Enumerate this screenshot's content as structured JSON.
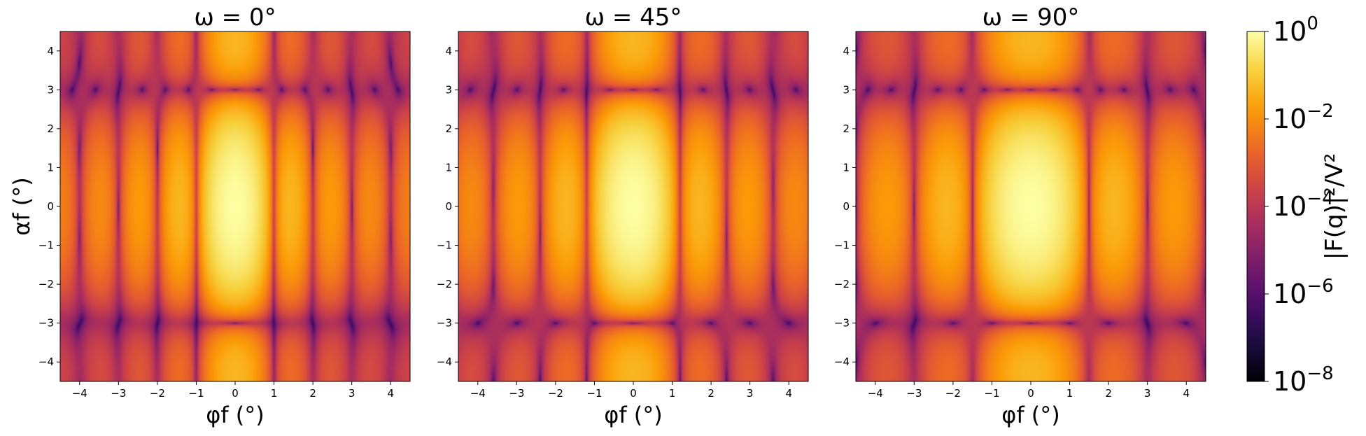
{
  "chart_data": [
    {
      "type": "heatmap",
      "title": "ω = 0°",
      "xlabel": "φf (°)",
      "ylabel": "αf (°)",
      "xlim": [
        -4.5,
        4.5
      ],
      "ylim": [
        -4.5,
        4.5
      ],
      "xticks": [
        "−4",
        "−3",
        "−2",
        "−1",
        "0",
        "1",
        "2",
        "3",
        "4"
      ],
      "yticks": [
        "−4",
        "−3",
        "−2",
        "−1",
        "0",
        "1",
        "2",
        "3",
        "4"
      ],
      "omega_deg": 0,
      "peak_halfwidth_x": 0.5,
      "peak_halfwidth_y": 1.5,
      "peak_value": 1
    },
    {
      "type": "heatmap",
      "title": "ω = 45°",
      "xlabel": "φf (°)",
      "ylabel": "",
      "xlim": [
        -4.5,
        4.5
      ],
      "ylim": [
        -4.5,
        4.5
      ],
      "xticks": [
        "−4",
        "−3",
        "−2",
        "−1",
        "0",
        "1",
        "2",
        "3",
        "4"
      ],
      "yticks": [
        "−4",
        "−3",
        "−2",
        "−1",
        "0",
        "1",
        "2",
        "3",
        "4"
      ],
      "omega_deg": 45,
      "peak_halfwidth_x": 0.6,
      "peak_halfwidth_y": 1.5,
      "peak_value": 1
    },
    {
      "type": "heatmap",
      "title": "ω = 90°",
      "xlabel": "φf (°)",
      "ylabel": "",
      "xlim": [
        -4.5,
        4.5
      ],
      "ylim": [
        -4.5,
        4.5
      ],
      "xticks": [
        "−4",
        "−3",
        "−2",
        "−1",
        "0",
        "1",
        "2",
        "3",
        "4"
      ],
      "yticks": [
        "−4",
        "−3",
        "−2",
        "−1",
        "0",
        "1",
        "2",
        "3",
        "4"
      ],
      "omega_deg": 90,
      "peak_halfwidth_x": 0.75,
      "peak_halfwidth_y": 1.5,
      "peak_value": 1
    }
  ],
  "colorbar": {
    "label": "|F(q)|²/V²",
    "scale": "log",
    "range": [
      1e-08,
      1
    ],
    "ticks": [
      {
        "base": "10",
        "exp": "0",
        "value": 1
      },
      {
        "base": "10",
        "exp": "−2",
        "value": 0.01
      },
      {
        "base": "10",
        "exp": "−4",
        "value": 0.0001
      },
      {
        "base": "10",
        "exp": "−6",
        "value": 1e-06
      },
      {
        "base": "10",
        "exp": "−8",
        "value": 1e-08
      }
    ],
    "colormap": "inferno",
    "colormap_stops": [
      "#000004",
      "#1b0c41",
      "#4a0c6b",
      "#781c6d",
      "#a52c60",
      "#cf4446",
      "#ed6925",
      "#fb9b06",
      "#f7d13d",
      "#fcffa4"
    ]
  }
}
